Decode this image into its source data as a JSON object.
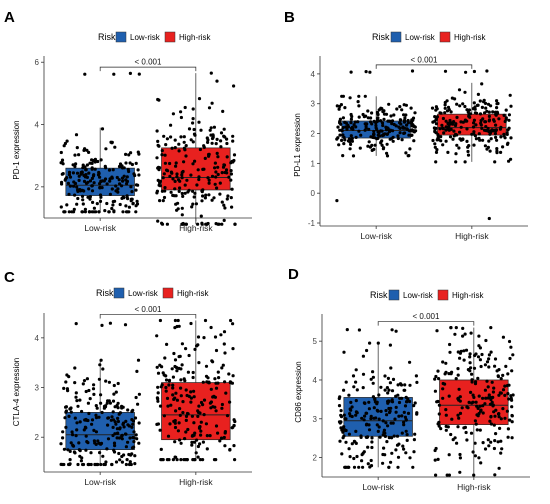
{
  "panels": [
    {
      "letter": "A",
      "ylabel": "PD-1 expression"
    },
    {
      "letter": "B",
      "ylabel": "PD-L1 expression"
    },
    {
      "letter": "C",
      "ylabel": "CTLA-4 expression"
    },
    {
      "letter": "D",
      "ylabel": "CD86 expression"
    }
  ],
  "legend": {
    "title": "Risk",
    "items": [
      "Low-risk",
      "High-risk"
    ]
  },
  "colors": {
    "low": "#1f5fae",
    "high": "#e8211f",
    "point": "#000000",
    "axis": "#333333"
  },
  "chart_data": [
    {
      "type": "box",
      "title": "",
      "ylabel": "PD-1 expression",
      "categories": [
        "Low-risk",
        "High-risk"
      ],
      "ylim": [
        1.0,
        6.2
      ],
      "yticks": [
        2,
        4,
        6
      ],
      "pvalue": "< 0.001",
      "series": [
        {
          "name": "Low-risk",
          "min": 1.2,
          "q1": 1.72,
          "median": 2.05,
          "q3": 2.6,
          "max": 3.9,
          "outlier_max": 5.65
        },
        {
          "name": "High-risk",
          "min": 0.8,
          "q1": 1.9,
          "median": 2.3,
          "q3": 3.25,
          "max": 5.65
        }
      ],
      "legend_position": "top"
    },
    {
      "type": "box",
      "title": "",
      "ylabel": "PD-L1 expression",
      "categories": [
        "Low-risk",
        "High-risk"
      ],
      "ylim": [
        -1.1,
        4.6
      ],
      "yticks": [
        -1,
        0,
        1,
        2,
        3,
        4
      ],
      "pvalue": "< 0.001",
      "series": [
        {
          "name": "Low-risk",
          "min": 1.25,
          "q1": 1.85,
          "median": 2.1,
          "q3": 2.42,
          "max": 3.25,
          "outlier_min": -0.25,
          "outlier_max": 4.1
        },
        {
          "name": "High-risk",
          "min": 1.05,
          "q1": 1.95,
          "median": 2.2,
          "q3": 2.65,
          "max": 3.7,
          "outlier_min": -0.85,
          "outlier_max": 4.1
        }
      ],
      "legend_position": "top"
    },
    {
      "type": "box",
      "title": "",
      "ylabel": "CTLA-4 expression",
      "categories": [
        "Low-risk",
        "High-risk"
      ],
      "ylim": [
        1.3,
        4.5
      ],
      "yticks": [
        2,
        3,
        4
      ],
      "pvalue": "< 0.001",
      "series": [
        {
          "name": "Low-risk",
          "min": 1.45,
          "q1": 1.75,
          "median": 2.05,
          "q3": 2.5,
          "max": 3.55,
          "outlier_max": 4.3
        },
        {
          "name": "High-risk",
          "min": 1.55,
          "q1": 1.95,
          "median": 2.45,
          "q3": 3.1,
          "max": 4.35
        }
      ],
      "legend_position": "top"
    },
    {
      "type": "box",
      "title": "",
      "ylabel": "CD86 expression",
      "categories": [
        "Low-risk",
        "High-risk"
      ],
      "ylim": [
        1.5,
        5.7
      ],
      "yticks": [
        2,
        3,
        4,
        5
      ],
      "pvalue": "< 0.001",
      "series": [
        {
          "name": "Low-risk",
          "min": 1.75,
          "q1": 2.55,
          "median": 2.95,
          "q3": 3.55,
          "max": 4.95,
          "outlier_max": 5.3
        },
        {
          "name": "High-risk",
          "min": 1.55,
          "q1": 2.85,
          "median": 3.35,
          "q3": 4.0,
          "max": 5.35
        }
      ],
      "legend_position": "top"
    }
  ]
}
